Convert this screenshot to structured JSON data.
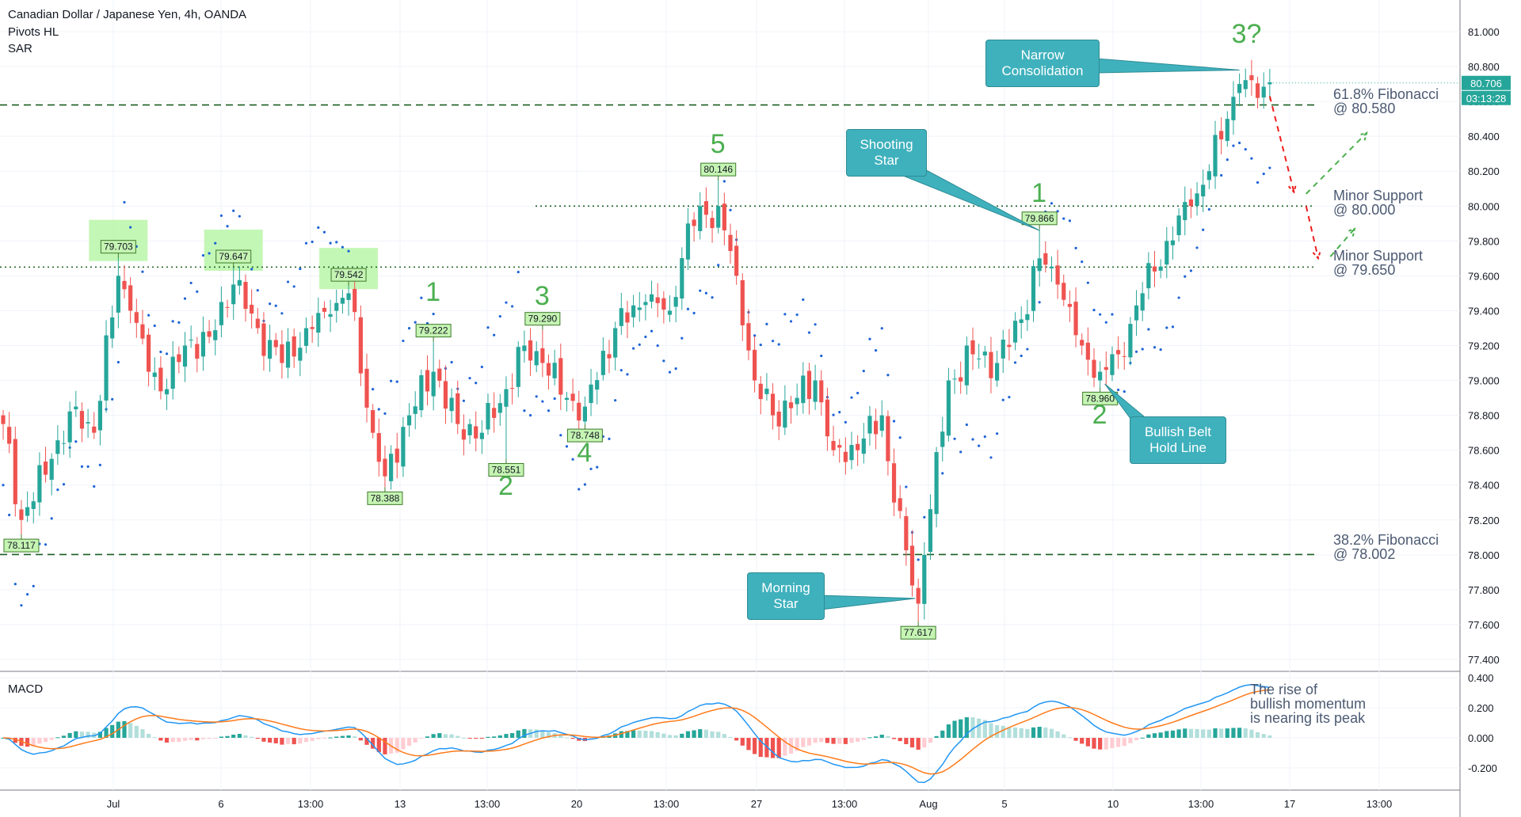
{
  "header": {
    "title": "Canadian Dollar / Japanese Yen, 4h, OANDA",
    "ind1": "Pivots HL",
    "ind2": "SAR",
    "macd": "MACD"
  },
  "colors": {
    "up": "#26a69a",
    "down": "#ef5350",
    "level": "#1b5e20",
    "sar": "#1e63d6",
    "macd": "#2196f3",
    "signal": "#ff7a1a",
    "callout": "#3fb1bd",
    "wave": "#4caf50"
  },
  "chart_data": {
    "type": "candlestick",
    "title": "Canadian Dollar / Japanese Yen, 4h, OANDA",
    "x_ticks": [
      "Jul",
      "6",
      "13:00",
      "13",
      "13:00",
      "20",
      "13:00",
      "27",
      "13:00",
      "Aug",
      "5",
      "10",
      "13:00",
      "17",
      "13:00"
    ],
    "y_ticks": [
      "81.000",
      "80.800",
      "80.600",
      "80.400",
      "80.200",
      "80.000",
      "79.800",
      "79.600",
      "79.400",
      "79.200",
      "79.000",
      "78.800",
      "78.600",
      "78.400",
      "78.200",
      "78.000",
      "77.800",
      "77.600",
      "77.400"
    ],
    "ylim": [
      77.25,
      81.35
    ],
    "macd_ticks": [
      "0.400",
      "0.200",
      "0.000",
      "-0.200"
    ],
    "macd_ylim": [
      -0.33,
      0.42
    ],
    "last_price": "80.706",
    "countdown": "03:13:28",
    "levels": [
      {
        "price": 80.58,
        "style": "dashed",
        "label1": "61.8% Fibonacci",
        "label2": "@ 80.580"
      },
      {
        "price": 80.0,
        "style": "dotted",
        "label1": "Minor Support",
        "label2": "@ 80.000"
      },
      {
        "price": 79.65,
        "style": "dotted",
        "label1": "Minor Support",
        "label2": "@ 79.650"
      },
      {
        "price": 78.002,
        "style": "dashed",
        "label1": "38.2% Fibonacci",
        "label2": "@ 78.002"
      }
    ],
    "pivots": [
      {
        "label": "78.117",
        "price": 78.117,
        "bar": 3,
        "type": "low"
      },
      {
        "label": "79.703",
        "price": 79.703,
        "bar": 19,
        "type": "high"
      },
      {
        "label": "79.647",
        "price": 79.647,
        "bar": 38,
        "type": "high"
      },
      {
        "label": "79.542",
        "price": 79.542,
        "bar": 57,
        "type": "high"
      },
      {
        "label": "78.388",
        "price": 78.388,
        "bar": 63,
        "type": "low"
      },
      {
        "label": "79.222",
        "price": 79.222,
        "bar": 71,
        "type": "high"
      },
      {
        "label": "78.551",
        "price": 78.551,
        "bar": 83,
        "type": "low"
      },
      {
        "label": "79.290",
        "price": 79.29,
        "bar": 89,
        "type": "high"
      },
      {
        "label": "78.748",
        "price": 78.748,
        "bar": 96,
        "type": "low"
      },
      {
        "label": "80.146",
        "price": 80.146,
        "bar": 118,
        "type": "high"
      },
      {
        "label": "77.617",
        "price": 77.617,
        "bar": 151,
        "type": "low"
      },
      {
        "label": "79.866",
        "price": 79.866,
        "bar": 171,
        "type": "high"
      },
      {
        "label": "78.960",
        "price": 78.96,
        "bar": 181,
        "type": "low"
      }
    ],
    "highlight_boxes": [
      {
        "bar": 19
      },
      {
        "bar": 38
      },
      {
        "bar": 57
      }
    ],
    "waves": [
      {
        "label": "1",
        "bar": 71,
        "price": 79.5
      },
      {
        "label": "2",
        "bar": 83,
        "price": 78.39
      },
      {
        "label": "3",
        "bar": 89,
        "price": 79.48
      },
      {
        "label": "4",
        "bar": 96,
        "price": 78.58
      },
      {
        "label": "5",
        "bar": 118,
        "price": 80.35
      },
      {
        "label": "1",
        "bar": 171,
        "price": 80.07
      },
      {
        "label": "2",
        "bar": 181,
        "price": 78.8
      },
      {
        "label": "3?",
        "bar": 204,
        "price": 80.98
      }
    ],
    "projection": [
      {
        "color": "red",
        "points": [
          [
            209,
            80.63
          ],
          [
            213,
            80.08
          ]
        ]
      },
      {
        "color": "green",
        "points": [
          [
            215,
            80.07
          ],
          [
            225,
            80.42
          ]
        ]
      },
      {
        "color": "red",
        "points": [
          [
            215,
            80.0
          ],
          [
            217,
            79.7
          ]
        ]
      },
      {
        "color": "green",
        "points": [
          [
            219,
            79.71
          ],
          [
            223,
            79.87
          ]
        ]
      }
    ],
    "key_closes": [
      [
        0,
        78.75
      ],
      [
        3,
        78.2
      ],
      [
        8,
        78.55
      ],
      [
        12,
        78.85
      ],
      [
        15,
        78.7
      ],
      [
        19,
        79.6
      ],
      [
        21,
        79.4
      ],
      [
        24,
        79.05
      ],
      [
        27,
        78.95
      ],
      [
        30,
        79.2
      ],
      [
        34,
        79.25
      ],
      [
        38,
        79.55
      ],
      [
        42,
        79.3
      ],
      [
        46,
        79.1
      ],
      [
        50,
        79.3
      ],
      [
        54,
        79.38
      ],
      [
        57,
        79.5
      ],
      [
        61,
        78.7
      ],
      [
        63,
        78.45
      ],
      [
        67,
        78.8
      ],
      [
        71,
        79.05
      ],
      [
        75,
        78.75
      ],
      [
        79,
        78.7
      ],
      [
        83,
        78.95
      ],
      [
        86,
        79.2
      ],
      [
        89,
        79.1
      ],
      [
        93,
        78.9
      ],
      [
        96,
        78.85
      ],
      [
        101,
        79.3
      ],
      [
        106,
        79.45
      ],
      [
        110,
        79.4
      ],
      [
        113,
        79.9
      ],
      [
        116,
        79.95
      ],
      [
        118,
        80.0
      ],
      [
        121,
        79.6
      ],
      [
        124,
        79.0
      ],
      [
        127,
        78.8
      ],
      [
        131,
        78.9
      ],
      [
        134,
        79.0
      ],
      [
        137,
        78.6
      ],
      [
        141,
        78.6
      ],
      [
        145,
        78.8
      ],
      [
        147,
        78.3
      ],
      [
        151,
        77.72
      ],
      [
        152,
        78.0
      ],
      [
        156,
        79.0
      ],
      [
        160,
        79.15
      ],
      [
        164,
        79.1
      ],
      [
        168,
        79.35
      ],
      [
        171,
        79.7
      ],
      [
        174,
        79.55
      ],
      [
        178,
        79.2
      ],
      [
        181,
        79.05
      ],
      [
        184,
        79.15
      ],
      [
        188,
        79.5
      ],
      [
        192,
        79.8
      ],
      [
        196,
        80.0
      ],
      [
        199,
        80.2
      ],
      [
        202,
        80.5
      ],
      [
        204,
        80.7
      ],
      [
        207,
        80.62
      ],
      [
        209,
        80.71
      ]
    ],
    "annotations": [
      {
        "text": "Narrow Consolidation",
        "bar": 204
      },
      {
        "text": "Shooting Star",
        "bar": 171
      },
      {
        "text": "Morning Star",
        "bar": 151
      },
      {
        "text": "Bullish Belt Hold Line",
        "bar": 181
      }
    ]
  },
  "callouts": {
    "narrow1": "Narrow",
    "narrow2": "Consolidation",
    "shoot1": "Shooting",
    "shoot2": "Star",
    "morning1": "Morning",
    "morning2": "Star",
    "belt1": "Bullish Belt",
    "belt2": "Hold Line"
  },
  "notes": {
    "macd1": "The rise of",
    "macd2": "bullish momentum",
    "macd3": "is nearing its peak"
  }
}
